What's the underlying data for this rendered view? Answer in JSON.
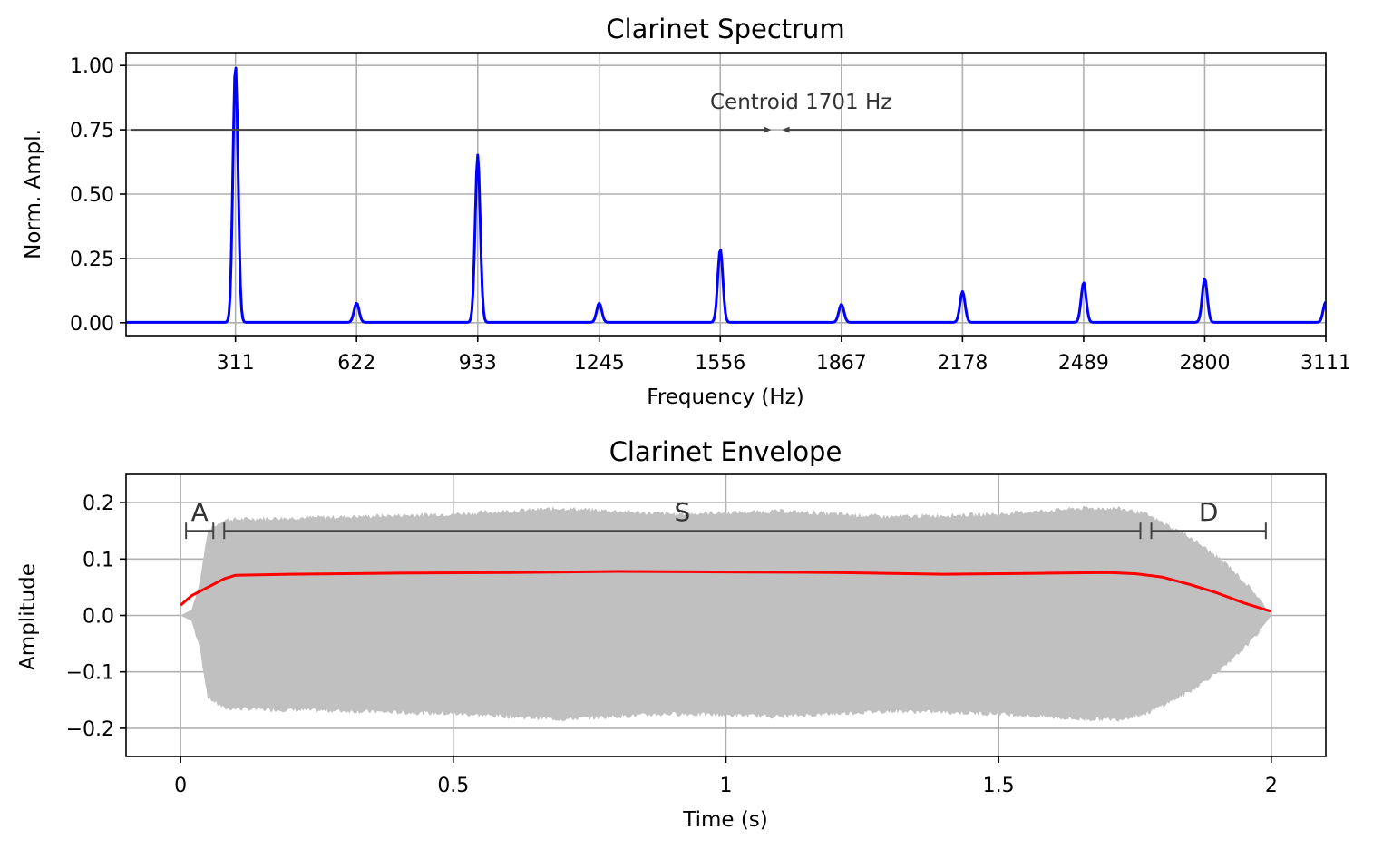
{
  "chart_data": [
    {
      "type": "line",
      "title": "Clarinet Spectrum",
      "xlabel": "Frequency (Hz)",
      "ylabel": "Norm. Ampl.",
      "xlim": [
        30,
        3111
      ],
      "ylim": [
        -0.05,
        1.05
      ],
      "grid": true,
      "xticks": [
        311,
        622,
        933,
        1245,
        1556,
        1867,
        2178,
        2489,
        2800,
        3111
      ],
      "xtick_labels": [
        "311",
        "622",
        "933",
        "1245",
        "1556",
        "1867",
        "2178",
        "2489",
        "2800",
        "3111"
      ],
      "yticks": [
        0.0,
        0.25,
        0.5,
        0.75,
        1.0
      ],
      "ytick_labels": [
        "0.00",
        "0.25",
        "0.50",
        "0.75",
        "1.00"
      ],
      "series": [
        {
          "color": "#0000ff",
          "peaks": [
            {
              "f": 311,
              "a": 1.0
            },
            {
              "f": 622,
              "a": 0.075
            },
            {
              "f": 933,
              "a": 0.65
            },
            {
              "f": 1245,
              "a": 0.075
            },
            {
              "f": 1556,
              "a": 0.285
            },
            {
              "f": 1867,
              "a": 0.07
            },
            {
              "f": 2178,
              "a": 0.12
            },
            {
              "f": 2489,
              "a": 0.155
            },
            {
              "f": 2800,
              "a": 0.17
            },
            {
              "f": 3111,
              "a": 0.08
            }
          ]
        }
      ],
      "annotation": {
        "text": "Centroid 1701 Hz",
        "y": 0.75,
        "centroid": 1701,
        "color": "#444444"
      }
    },
    {
      "type": "area",
      "title": "Clarinet Envelope",
      "xlabel": "Time (s)",
      "ylabel": "Amplitude",
      "xlim": [
        -0.1,
        2.1
      ],
      "ylim": [
        -0.25,
        0.25
      ],
      "grid": true,
      "xticks": [
        0,
        0.5,
        1,
        1.5,
        2
      ],
      "xtick_labels": [
        "0",
        "0.5",
        "1",
        "1.5",
        "2"
      ],
      "yticks": [
        -0.2,
        -0.1,
        0.0,
        0.1,
        0.2
      ],
      "ytick_labels": [
        "−0.2",
        "−0.1",
        "0.0",
        "0.1",
        "0.2"
      ],
      "waveform": {
        "color": "#c0c0c0",
        "envelope": [
          [
            0.0,
            0.0
          ],
          [
            0.02,
            0.01
          ],
          [
            0.035,
            0.06
          ],
          [
            0.05,
            0.15
          ],
          [
            0.08,
            0.17
          ],
          [
            0.15,
            0.172
          ],
          [
            0.3,
            0.175
          ],
          [
            0.5,
            0.18
          ],
          [
            0.7,
            0.19
          ],
          [
            0.9,
            0.18
          ],
          [
            1.1,
            0.185
          ],
          [
            1.3,
            0.175
          ],
          [
            1.5,
            0.18
          ],
          [
            1.65,
            0.19
          ],
          [
            1.72,
            0.19
          ],
          [
            1.77,
            0.18
          ],
          [
            1.85,
            0.14
          ],
          [
            1.92,
            0.09
          ],
          [
            1.97,
            0.04
          ],
          [
            2.0,
            0.0
          ]
        ]
      },
      "rms_series": {
        "color": "#ff0000",
        "points": [
          [
            0.0,
            0.018
          ],
          [
            0.02,
            0.035
          ],
          [
            0.05,
            0.05
          ],
          [
            0.08,
            0.065
          ],
          [
            0.1,
            0.071
          ],
          [
            0.2,
            0.073
          ],
          [
            0.4,
            0.075
          ],
          [
            0.6,
            0.076
          ],
          [
            0.8,
            0.078
          ],
          [
            1.0,
            0.077
          ],
          [
            1.2,
            0.076
          ],
          [
            1.4,
            0.073
          ],
          [
            1.6,
            0.075
          ],
          [
            1.7,
            0.076
          ],
          [
            1.75,
            0.074
          ],
          [
            1.8,
            0.068
          ],
          [
            1.85,
            0.055
          ],
          [
            1.9,
            0.04
          ],
          [
            1.95,
            0.022
          ],
          [
            2.0,
            0.007
          ]
        ]
      },
      "phases": [
        {
          "label": "A",
          "start": 0.01,
          "end": 0.06
        },
        {
          "label": "S",
          "start": 0.08,
          "end": 1.76
        },
        {
          "label": "D",
          "start": 1.78,
          "end": 1.99
        }
      ],
      "phase_y": 0.15
    }
  ]
}
